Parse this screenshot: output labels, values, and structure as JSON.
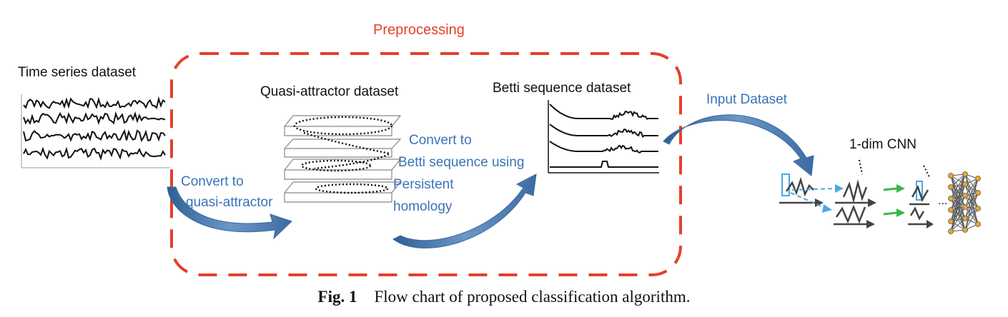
{
  "preprocessing_label": "Preprocessing",
  "time_series_label": "Time series dataset",
  "quasi_attractor_label": "Quasi-attractor dataset",
  "betti_label": "Betti sequence dataset",
  "input_dataset_label": "Input Dataset",
  "cnn_label": "1-dim CNN",
  "step1_line1": "Convert to",
  "step1_line2": "quasi-attractor",
  "step2_line1": "Convert to",
  "step2_line2": "Betti sequence using",
  "step2_line3": "Persistent",
  "step2_line4": "homology",
  "ellipsis": "...",
  "caption_number": "Fig. 1",
  "caption_text": "Flow chart of proposed classification algorithm.",
  "colors": {
    "red_dashed": "#e5402b",
    "arrow_blue": "#4a79b0",
    "label_blue": "#3a73b8",
    "cnn_green": "#3cb54a",
    "neuron_orange": "#e8a630",
    "cyan": "#4aa8e6"
  }
}
